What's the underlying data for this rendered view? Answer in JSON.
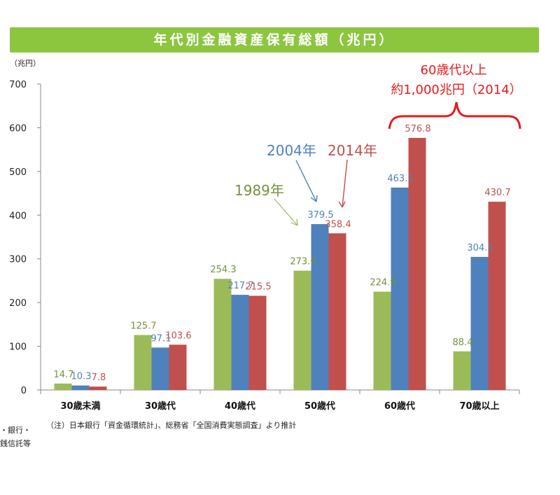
{
  "header": {
    "title": "年代別金融資産保有総額（兆円）"
  },
  "chart_data": {
    "type": "bar",
    "title": "年代別金融資産保有総額（兆円）",
    "unit_label": "（兆円）",
    "ylim": [
      0,
      700
    ],
    "yticks": [
      0,
      100,
      200,
      300,
      400,
      500,
      600,
      700
    ],
    "categories": [
      "30歳未満",
      "30歳代",
      "40歳代",
      "50歳代",
      "60歳代",
      "70歳以上"
    ],
    "series": [
      {
        "name": "1989年",
        "color": "#9bbb59",
        "label_color": "#76923c",
        "values": [
          14.7,
          125.7,
          254.3,
          273.0,
          224.9,
          88.4
        ]
      },
      {
        "name": "2004年",
        "color": "#4f81bd",
        "label_color": "#4f81bd",
        "values": [
          10.3,
          97.1,
          217.7,
          379.5,
          463.1,
          304.5
        ]
      },
      {
        "name": "2014年",
        "color": "#c0504d",
        "label_color": "#c0504d",
        "values": [
          7.8,
          103.6,
          215.5,
          358.4,
          576.8,
          430.7
        ]
      }
    ],
    "annotations": {
      "year_1989": "1989年",
      "year_2004": "2004年",
      "year_2014": "2014年",
      "callout_line1": "60歳代以上",
      "callout_line2": "約1,000兆円（2014）"
    },
    "note": "（注）日本銀行「資金循環統計」、総務省「全国消費実態調査」より推計",
    "left_cut_text": [
      "・銀行・",
      "銭信託等"
    ]
  }
}
